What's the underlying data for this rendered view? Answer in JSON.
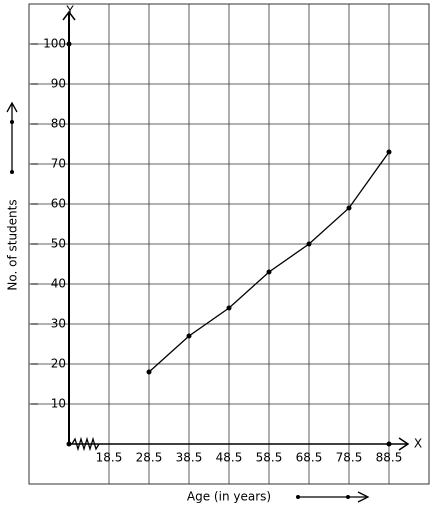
{
  "chart_data": {
    "type": "line",
    "x_label": "Age (in years)",
    "y_label": "No. of students",
    "x_axis_name": "X",
    "y_axis_name": "Y",
    "x": [
      28.5,
      38.5,
      48.5,
      58.5,
      68.5,
      78.5,
      88.5
    ],
    "series": [
      {
        "color": "#000000",
        "values": [
          18,
          27,
          34,
          43,
          50,
          59,
          73
        ]
      }
    ],
    "xlim": [
      8.5,
      98.5
    ],
    "ylim": [
      -10,
      110
    ],
    "xticks": [
      18.5,
      28.5,
      38.5,
      48.5,
      58.5,
      68.5,
      78.5,
      88.5
    ],
    "yticks": [
      10,
      20,
      30,
      40,
      50,
      60,
      70,
      80,
      90,
      100
    ],
    "grid": true
  }
}
